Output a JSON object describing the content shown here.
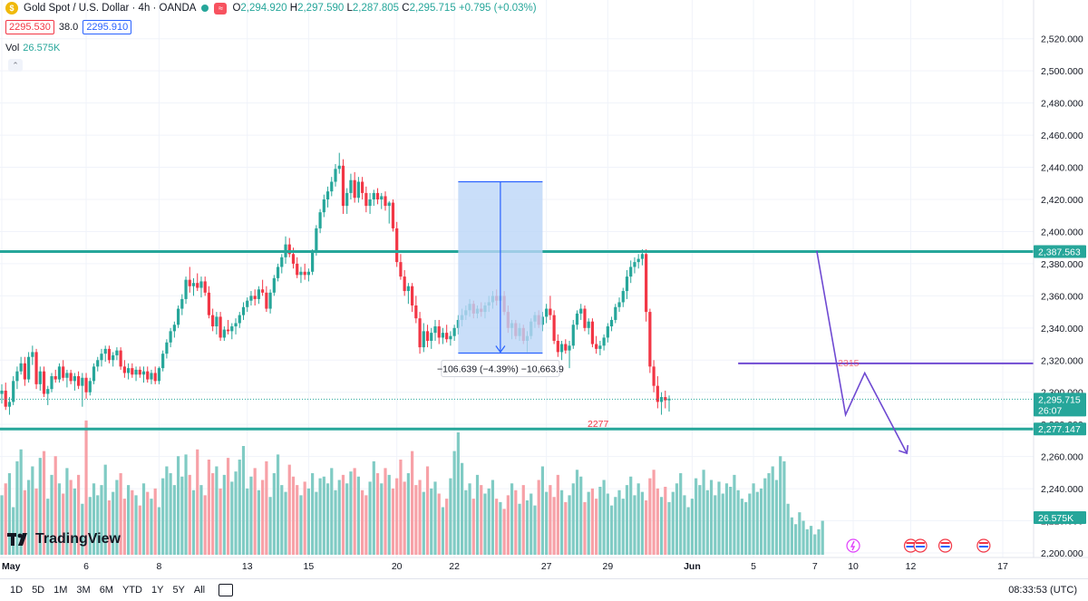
{
  "header": {
    "symbol_title": "Gold Spot / U.S. Dollar · 4h · OANDA",
    "logo_glyph": "$",
    "badge_glyph": "≈",
    "ohlc": {
      "open_label": "O",
      "open": "2,294.920",
      "high_label": "H",
      "high": "2,297.590",
      "low_label": "L",
      "low": "2,287.805",
      "close_label": "C",
      "close": "2,295.715",
      "change": "+0.795 (+0.03%)"
    },
    "bid": "2295.530",
    "spread": "38.0",
    "ask": "2295.910",
    "vol_label": "Vol",
    "vol_value": "26.575K",
    "collapse_glyph": "⌃"
  },
  "branding": {
    "name": "TradingView"
  },
  "bottom_bar": {
    "ranges": [
      "1D",
      "5D",
      "1M",
      "3M",
      "6M",
      "YTD",
      "1Y",
      "5Y",
      "All"
    ],
    "clock": "08:33:53 (UTC)"
  },
  "colors": {
    "up": "#26a69a",
    "down": "#f23645",
    "vol_up": "#80cbc4",
    "vol_down": "#f7a1a7",
    "level_line": "#26a69a",
    "trend_line": "#6f4ad2",
    "measure_fill": "#bbd6f7",
    "measure_stroke": "#2962ff"
  },
  "chart_data": {
    "type": "candlestick",
    "ylim": [
      2200,
      2530
    ],
    "y_ticks": [
      "2,200.000",
      "2,220.000",
      "2,240.000",
      "2,260.000",
      "2,280.000",
      "2,300.000",
      "2,320.000",
      "2,340.000",
      "2,360.000",
      "2,380.000",
      "2,400.000",
      "2,420.000",
      "2,440.000",
      "2,460.000",
      "2,480.000",
      "2,500.000",
      "2,520.000"
    ],
    "x_ticks": [
      {
        "label": "May",
        "bar": 0
      },
      {
        "label": "6",
        "bar": 22
      },
      {
        "label": "8",
        "bar": 41
      },
      {
        "label": "13",
        "bar": 64
      },
      {
        "label": "15",
        "bar": 80
      },
      {
        "label": "20",
        "bar": 103
      },
      {
        "label": "22",
        "bar": 118
      },
      {
        "label": "27",
        "bar": 142
      },
      {
        "label": "29",
        "bar": 158
      },
      {
        "label": "Jun",
        "bar": 180
      },
      {
        "label": "5",
        "bar": 196
      },
      {
        "label": "7",
        "bar": 212
      },
      {
        "label": "10",
        "bar": 222
      },
      {
        "label": "12",
        "bar": 237
      },
      {
        "label": "17",
        "bar": 261
      }
    ],
    "price_tags": [
      {
        "label": "2,387.563",
        "value": 2387.563,
        "color": "#26a69a"
      },
      {
        "label": "2,295.715",
        "value": 2295.715,
        "sub": "26:07",
        "color": "#26a69a"
      },
      {
        "label": "2,277.147",
        "value": 2277.147,
        "color": "#26a69a"
      },
      {
        "label": "26.575K",
        "value": 2222,
        "color": "#26a69a"
      }
    ],
    "levels": [
      {
        "value": 2387.563,
        "label": ""
      },
      {
        "value": 2277.147,
        "label": "2277"
      }
    ],
    "trend_level": {
      "value": 2318,
      "label": "2315",
      "from_bar": 192
    },
    "measure": {
      "from_bar": 119,
      "to_bar": 141,
      "top": 2431,
      "bottom": 2324.4,
      "label": "−106.639 (−4.39%) −10,663.9"
    },
    "projection": [
      {
        "bar": 220,
        "price": 2286
      },
      {
        "bar": 225,
        "price": 2312
      },
      {
        "bar": 236,
        "price": 2262
      }
    ],
    "ohlc": [
      [
        2299,
        2305,
        2293,
        2301
      ],
      [
        2301,
        2306,
        2289,
        2291
      ],
      [
        2291,
        2297,
        2286,
        2294
      ],
      [
        2294,
        2310,
        2292,
        2307
      ],
      [
        2307,
        2316,
        2302,
        2313
      ],
      [
        2313,
        2322,
        2311,
        2318
      ],
      [
        2318,
        2322,
        2304,
        2308
      ],
      [
        2308,
        2325,
        2306,
        2322
      ],
      [
        2322,
        2329,
        2317,
        2325
      ],
      [
        2325,
        2327,
        2302,
        2305
      ],
      [
        2305,
        2316,
        2301,
        2313
      ],
      [
        2313,
        2316,
        2297,
        2299
      ],
      [
        2299,
        2304,
        2292,
        2302
      ],
      [
        2302,
        2312,
        2300,
        2310
      ],
      [
        2310,
        2314,
        2306,
        2308
      ],
      [
        2308,
        2318,
        2306,
        2316
      ],
      [
        2316,
        2320,
        2307,
        2309
      ],
      [
        2309,
        2314,
        2303,
        2312
      ],
      [
        2312,
        2314,
        2305,
        2307
      ],
      [
        2307,
        2312,
        2301,
        2310
      ],
      [
        2310,
        2313,
        2302,
        2304
      ],
      [
        2304,
        2312,
        2291,
        2309
      ],
      [
        2309,
        2312,
        2296,
        2300
      ],
      [
        2300,
        2309,
        2298,
        2307
      ],
      [
        2307,
        2318,
        2305,
        2316
      ],
      [
        2316,
        2322,
        2313,
        2320
      ],
      [
        2320,
        2327,
        2316,
        2324
      ],
      [
        2324,
        2329,
        2319,
        2327
      ],
      [
        2327,
        2329,
        2318,
        2320
      ],
      [
        2320,
        2325,
        2316,
        2323
      ],
      [
        2323,
        2328,
        2320,
        2326
      ],
      [
        2326,
        2328,
        2314,
        2316
      ],
      [
        2316,
        2320,
        2309,
        2312
      ],
      [
        2312,
        2318,
        2308,
        2315
      ],
      [
        2315,
        2318,
        2309,
        2311
      ],
      [
        2311,
        2316,
        2307,
        2314
      ],
      [
        2314,
        2316,
        2309,
        2311
      ],
      [
        2311,
        2316,
        2306,
        2313
      ],
      [
        2313,
        2316,
        2306,
        2308
      ],
      [
        2308,
        2314,
        2305,
        2312
      ],
      [
        2312,
        2316,
        2305,
        2307
      ],
      [
        2307,
        2316,
        2305,
        2315
      ],
      [
        2315,
        2326,
        2313,
        2324
      ],
      [
        2324,
        2333,
        2321,
        2331
      ],
      [
        2331,
        2340,
        2328,
        2338
      ],
      [
        2338,
        2344,
        2334,
        2342
      ],
      [
        2342,
        2354,
        2340,
        2352
      ],
      [
        2352,
        2361,
        2348,
        2358
      ],
      [
        2358,
        2372,
        2355,
        2370
      ],
      [
        2370,
        2378,
        2362,
        2366
      ],
      [
        2366,
        2371,
        2360,
        2368
      ],
      [
        2368,
        2374,
        2363,
        2365
      ],
      [
        2365,
        2372,
        2359,
        2369
      ],
      [
        2369,
        2372,
        2360,
        2362
      ],
      [
        2362,
        2366,
        2346,
        2348
      ],
      [
        2348,
        2352,
        2338,
        2341
      ],
      [
        2341,
        2350,
        2336,
        2347
      ],
      [
        2347,
        2350,
        2332,
        2334
      ],
      [
        2334,
        2341,
        2332,
        2339
      ],
      [
        2339,
        2345,
        2336,
        2338
      ],
      [
        2338,
        2343,
        2333,
        2341
      ],
      [
        2341,
        2346,
        2336,
        2343
      ],
      [
        2343,
        2350,
        2340,
        2348
      ],
      [
        2348,
        2356,
        2345,
        2353
      ],
      [
        2353,
        2359,
        2350,
        2357
      ],
      [
        2357,
        2363,
        2354,
        2360
      ],
      [
        2360,
        2364,
        2354,
        2358
      ],
      [
        2358,
        2366,
        2355,
        2364
      ],
      [
        2364,
        2370,
        2360,
        2362
      ],
      [
        2362,
        2366,
        2350,
        2352
      ],
      [
        2352,
        2364,
        2349,
        2362
      ],
      [
        2362,
        2373,
        2360,
        2371
      ],
      [
        2371,
        2380,
        2369,
        2378
      ],
      [
        2378,
        2386,
        2374,
        2384
      ],
      [
        2384,
        2397,
        2380,
        2392
      ],
      [
        2392,
        2396,
        2384,
        2386
      ],
      [
        2386,
        2390,
        2377,
        2380
      ],
      [
        2380,
        2384,
        2371,
        2373
      ],
      [
        2373,
        2378,
        2368,
        2375
      ],
      [
        2375,
        2380,
        2370,
        2373
      ],
      [
        2373,
        2377,
        2369,
        2375
      ],
      [
        2375,
        2389,
        2373,
        2387
      ],
      [
        2387,
        2404,
        2385,
        2402
      ],
      [
        2402,
        2414,
        2399,
        2412
      ],
      [
        2412,
        2423,
        2409,
        2420
      ],
      [
        2420,
        2428,
        2415,
        2425
      ],
      [
        2425,
        2434,
        2422,
        2431
      ],
      [
        2431,
        2442,
        2428,
        2439
      ],
      [
        2439,
        2449,
        2436,
        2441
      ],
      [
        2441,
        2445,
        2411,
        2416
      ],
      [
        2416,
        2427,
        2411,
        2424
      ],
      [
        2424,
        2436,
        2420,
        2432
      ],
      [
        2432,
        2437,
        2418,
        2421
      ],
      [
        2421,
        2434,
        2418,
        2431
      ],
      [
        2431,
        2434,
        2420,
        2424
      ],
      [
        2424,
        2428,
        2412,
        2416
      ],
      [
        2416,
        2424,
        2411,
        2420
      ],
      [
        2420,
        2426,
        2416,
        2424
      ],
      [
        2424,
        2427,
        2417,
        2420
      ],
      [
        2420,
        2424,
        2414,
        2422
      ],
      [
        2422,
        2425,
        2413,
        2416
      ],
      [
        2416,
        2419,
        2405,
        2418
      ],
      [
        2418,
        2420,
        2400,
        2402
      ],
      [
        2402,
        2406,
        2378,
        2381
      ],
      [
        2381,
        2386,
        2370,
        2372
      ],
      [
        2372,
        2376,
        2360,
        2363
      ],
      [
        2363,
        2368,
        2355,
        2366
      ],
      [
        2366,
        2368,
        2350,
        2354
      ],
      [
        2354,
        2360,
        2343,
        2346
      ],
      [
        2346,
        2350,
        2324,
        2328
      ],
      [
        2328,
        2343,
        2325,
        2338
      ],
      [
        2338,
        2342,
        2328,
        2332
      ],
      [
        2332,
        2340,
        2327,
        2337
      ],
      [
        2337,
        2345,
        2332,
        2341
      ],
      [
        2341,
        2345,
        2330,
        2334
      ],
      [
        2334,
        2340,
        2330,
        2337
      ],
      [
        2337,
        2342,
        2331,
        2333
      ],
      [
        2333,
        2338,
        2329,
        2335
      ],
      [
        2335,
        2342,
        2332,
        2340
      ],
      [
        2340,
        2348,
        2336,
        2345
      ],
      [
        2345,
        2352,
        2341,
        2348
      ],
      [
        2348,
        2354,
        2345,
        2351
      ],
      [
        2351,
        2358,
        2347,
        2355
      ],
      [
        2355,
        2357,
        2346,
        2349
      ],
      [
        2349,
        2354,
        2346,
        2352
      ],
      [
        2352,
        2356,
        2347,
        2350
      ],
      [
        2350,
        2356,
        2346,
        2354
      ],
      [
        2354,
        2360,
        2350,
        2356
      ],
      [
        2356,
        2363,
        2352,
        2360
      ],
      [
        2360,
        2364,
        2354,
        2357
      ],
      [
        2357,
        2363,
        2353,
        2360
      ],
      [
        2360,
        2363,
        2348,
        2350
      ],
      [
        2350,
        2354,
        2337,
        2340
      ],
      [
        2340,
        2345,
        2333,
        2343
      ],
      [
        2343,
        2345,
        2333,
        2335
      ],
      [
        2335,
        2343,
        2332,
        2340
      ],
      [
        2340,
        2342,
        2330,
        2332
      ],
      [
        2332,
        2338,
        2325,
        2335
      ],
      [
        2335,
        2346,
        2333,
        2344
      ],
      [
        2344,
        2350,
        2340,
        2348
      ],
      [
        2348,
        2351,
        2340,
        2342
      ],
      [
        2342,
        2350,
        2338,
        2347
      ],
      [
        2347,
        2355,
        2343,
        2352
      ],
      [
        2352,
        2360,
        2345,
        2348
      ],
      [
        2348,
        2351,
        2330,
        2332
      ],
      [
        2332,
        2336,
        2322,
        2325
      ],
      [
        2325,
        2332,
        2320,
        2330
      ],
      [
        2330,
        2333,
        2324,
        2326
      ],
      [
        2326,
        2332,
        2315,
        2329
      ],
      [
        2329,
        2345,
        2327,
        2342
      ],
      [
        2342,
        2351,
        2339,
        2349
      ],
      [
        2349,
        2355,
        2345,
        2352
      ],
      [
        2352,
        2354,
        2338,
        2340
      ],
      [
        2340,
        2346,
        2336,
        2344
      ],
      [
        2344,
        2346,
        2328,
        2330
      ],
      [
        2330,
        2335,
        2324,
        2327
      ],
      [
        2327,
        2332,
        2323,
        2329
      ],
      [
        2329,
        2336,
        2326,
        2334
      ],
      [
        2334,
        2343,
        2331,
        2341
      ],
      [
        2341,
        2347,
        2338,
        2345
      ],
      [
        2345,
        2355,
        2343,
        2353
      ],
      [
        2353,
        2359,
        2350,
        2356
      ],
      [
        2356,
        2365,
        2353,
        2363
      ],
      [
        2363,
        2376,
        2358,
        2372
      ],
      [
        2372,
        2382,
        2368,
        2378
      ],
      [
        2378,
        2384,
        2374,
        2381
      ],
      [
        2381,
        2386,
        2377,
        2383
      ],
      [
        2383,
        2389,
        2379,
        2386
      ],
      [
        2386,
        2389,
        2344,
        2350
      ],
      [
        2350,
        2352,
        2312,
        2316
      ],
      [
        2316,
        2320,
        2300,
        2304
      ],
      [
        2304,
        2310,
        2290,
        2294
      ],
      [
        2294,
        2300,
        2286,
        2297
      ],
      [
        2297,
        2301,
        2290,
        2295
      ],
      [
        2295,
        2298,
        2288,
        2296
      ]
    ],
    "volume": [
      35,
      42,
      48,
      28,
      55,
      62,
      38,
      44,
      52,
      39,
      57,
      61,
      33,
      47,
      58,
      42,
      36,
      51,
      44,
      39,
      47,
      30,
      79,
      34,
      42,
      35,
      41,
      53,
      32,
      37,
      44,
      48,
      33,
      41,
      38,
      35,
      29,
      42,
      37,
      33,
      39,
      28,
      45,
      52,
      48,
      41,
      58,
      46,
      59,
      47,
      38,
      62,
      41,
      35,
      56,
      48,
      52,
      39,
      47,
      57,
      43,
      49,
      56,
      64,
      39,
      46,
      51,
      38,
      44,
      55,
      34,
      48,
      59,
      41,
      37,
      53,
      46,
      41,
      35,
      43,
      39,
      48,
      37,
      45,
      46,
      42,
      51,
      38,
      44,
      47,
      42,
      49,
      51,
      46,
      38,
      35,
      43,
      55,
      48,
      42,
      51,
      47,
      39,
      45,
      56,
      43,
      48,
      61,
      41,
      44,
      37,
      52,
      39,
      43,
      36,
      28,
      33,
      45,
      61,
      72,
      54,
      38,
      42,
      33,
      47,
      41,
      36,
      39,
      44,
      33,
      31,
      27,
      35,
      42,
      38,
      30,
      41,
      32,
      36,
      29,
      44,
      52,
      37,
      41,
      34,
      47,
      38,
      31,
      35,
      42,
      50,
      46,
      31,
      37,
      39,
      33,
      40,
      44,
      36,
      29,
      34,
      38,
      33,
      41,
      46,
      35,
      42,
      37,
      32,
      45,
      50,
      39,
      34,
      40,
      31,
      37,
      42,
      48,
      35,
      28,
      33,
      45,
      41,
      50,
      38,
      44,
      35,
      43,
      36,
      42,
      40,
      47,
      38,
      33,
      31,
      36,
      42,
      37,
      39,
      45,
      48,
      52,
      44,
      58,
      55,
      30,
      22,
      18,
      25,
      20,
      15,
      17,
      12,
      15,
      20
    ],
    "vol_max": 80
  }
}
